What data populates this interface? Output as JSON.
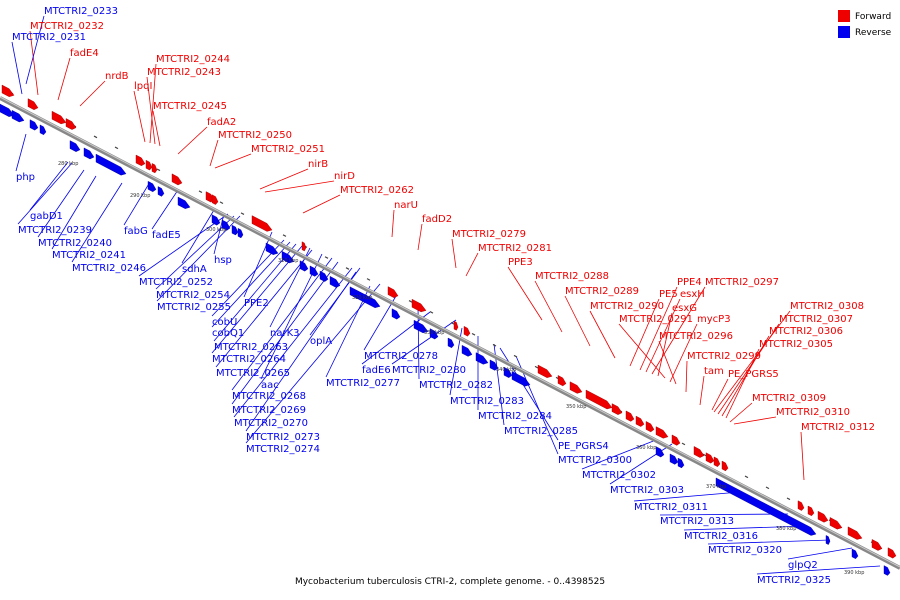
{
  "caption": "Mycobacterium tuberculosis CTRI-2, complete genome. - 0..4398525",
  "legend": [
    {
      "label": "Forward",
      "color": "#ee0000"
    },
    {
      "label": "Reverse",
      "color": "#0000ee"
    }
  ],
  "colors": {
    "forward": "#ee0000",
    "reverse": "#0000ee",
    "backbone": "#888888",
    "tick": "#222222"
  },
  "tick_labels": [
    "280 kbp",
    "290 kbp",
    "300 kbp",
    "310 kbp",
    "320 kbp",
    "330 kbp",
    "340 kbp",
    "350 kbp",
    "360 kbp",
    "370 kbp",
    "380 kbp",
    "390 kbp"
  ],
  "forward_labels": [
    "MTCTRI2_0232",
    "fadE4",
    "nrdB",
    "lpqI",
    "MTCTRI2_0244",
    "MTCTRI2_0243",
    "MTCTRI2_0245",
    "fadA2",
    "MTCTRI2_0250",
    "MTCTRI2_0251",
    "nirB",
    "nirD",
    "MTCTRI2_0262",
    "narU",
    "fadD2",
    "MTCTRI2_0279",
    "MTCTRI2_0281",
    "PPE3",
    "MTCTRI2_0288",
    "MTCTRI2_0289",
    "MTCTRI2_0290",
    "PE5",
    "PPE4",
    "esxH",
    "MTCTRI2_0297",
    "esxG",
    "MTCTRI2_0291",
    "mycP3",
    "MTCTRI2_0296",
    "MTCTRI2_0299",
    "tam",
    "PE_PGRS5",
    "MTCTRI2_0308",
    "MTCTRI2_0307",
    "MTCTRI2_0306",
    "MTCTRI2_0305",
    "MTCTRI2_0309",
    "MTCTRI2_0310",
    "MTCTRI2_0312"
  ],
  "reverse_labels": [
    "MTCTRI2_0233",
    "MTCTRI2_0231",
    "php",
    "gabD1",
    "MTCTRI2_0239",
    "fabG",
    "fadE5",
    "MTCTRI2_0240",
    "MTCTRI2_0241",
    "MTCTRI2_0246",
    "sdhA",
    "hsp",
    "MTCTRI2_0252",
    "MTCTRI2_0254",
    "MTCTRI2_0255",
    "PPE2",
    "cobU",
    "cobQ1",
    "narK3",
    "oplA",
    "MTCTRI2_0263",
    "MTCTRI2_0264",
    "MTCTRI2_0265",
    "aac",
    "MTCTRI2_0268",
    "MTCTRI2_0269",
    "MTCTRI2_0270",
    "MTCTRI2_0273",
    "MTCTRI2_0274",
    "MTCTRI2_0278",
    "fadE6",
    "MTCTRI2_0280",
    "MTCTRI2_0277",
    "MTCTRI2_0282",
    "MTCTRI2_0283",
    "MTCTRI2_0284",
    "MTCTRI2_0285",
    "PE_PGRS4",
    "MTCTRI2_0300",
    "MTCTRI2_0302",
    "MTCTRI2_0303",
    "MTCTRI2_0311",
    "MTCTRI2_0313",
    "MTCTRI2_0316",
    "MTCTRI2_0320",
    "glpQ2",
    "MTCTRI2_0325"
  ]
}
